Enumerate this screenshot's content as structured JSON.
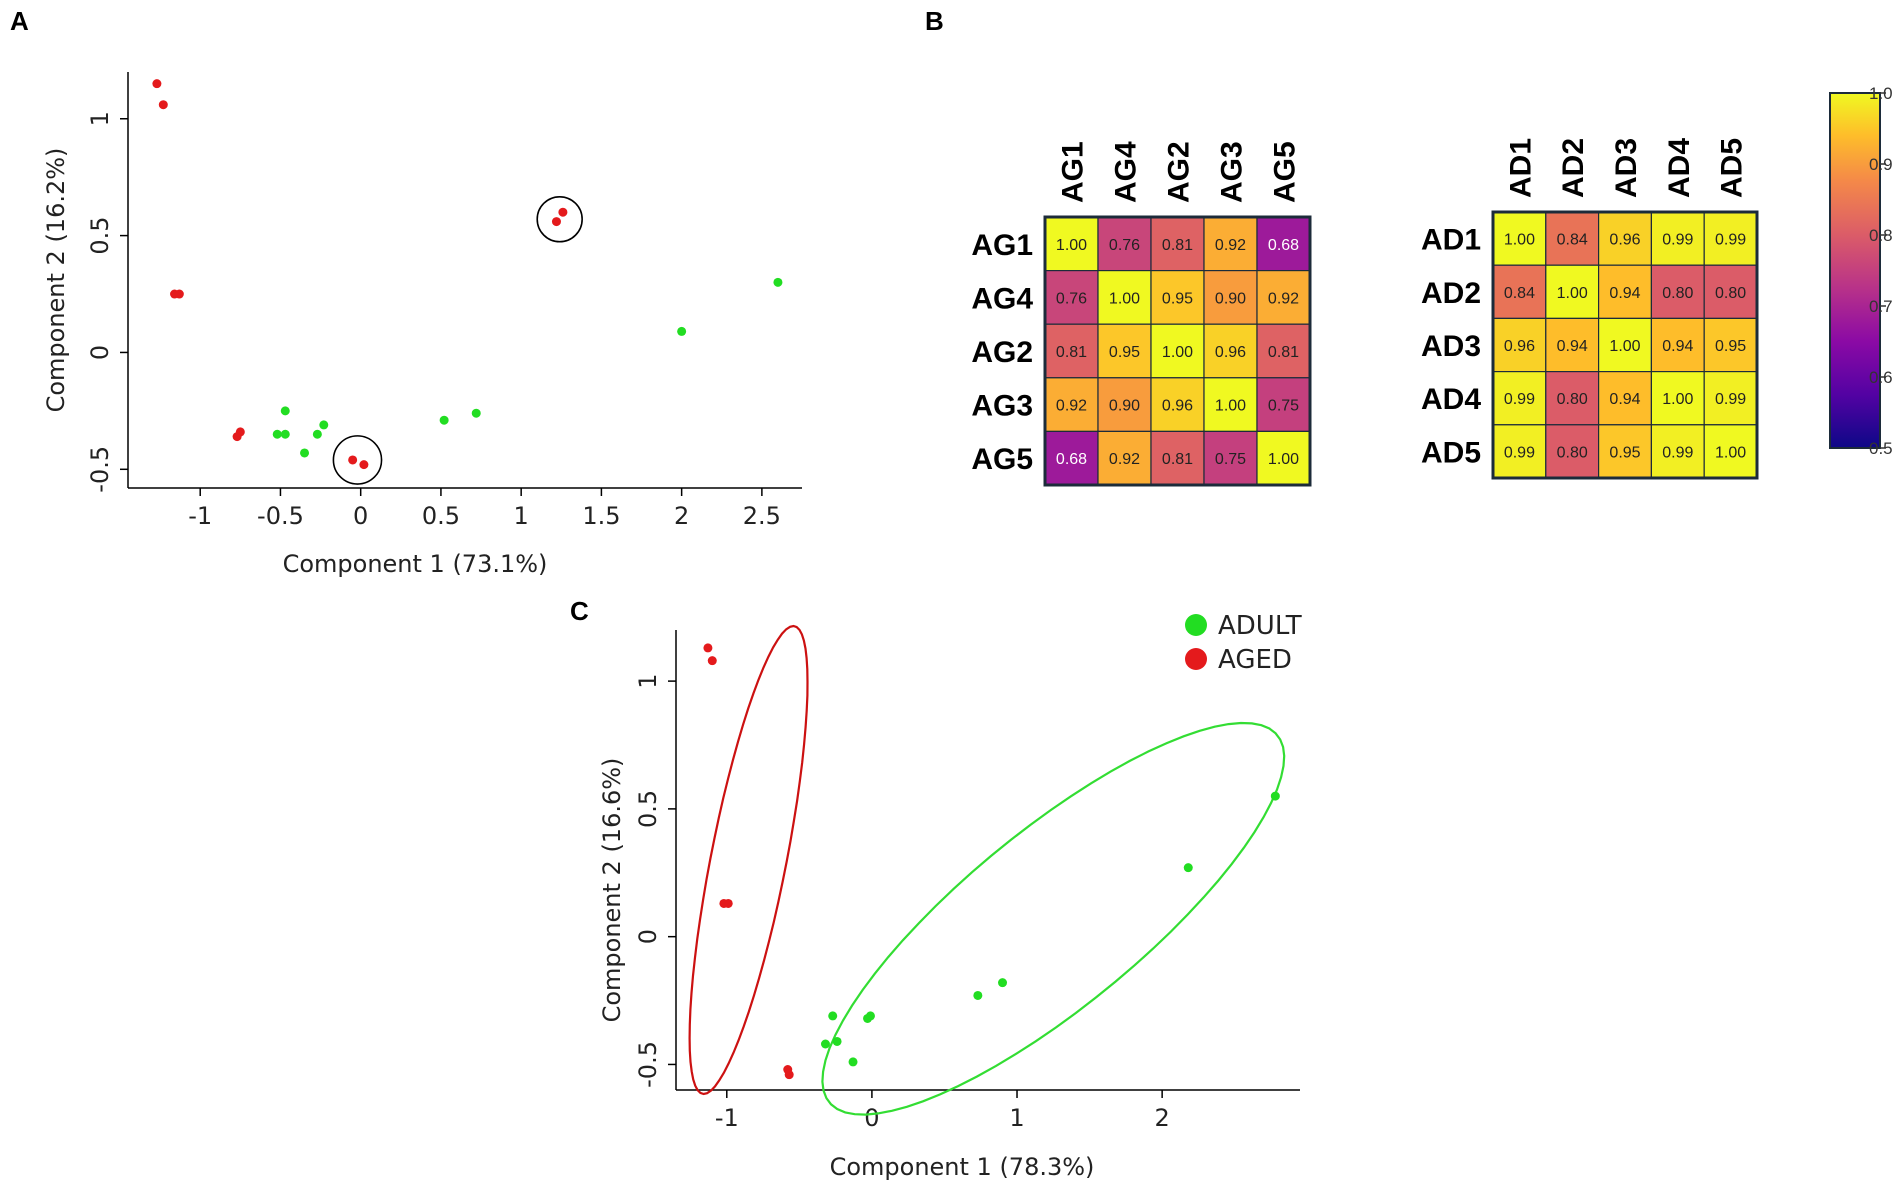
{
  "panels": {
    "a": "A",
    "b": "B",
    "c": "C"
  },
  "colors": {
    "adult": "#22dd22",
    "aged": "#e41a1c",
    "highlight_circle": "#000000",
    "ellipse_adult": "#33dd33",
    "ellipse_aged": "#cc1111",
    "grid_border": "#1c2b3a"
  },
  "legend": {
    "items": [
      {
        "label": "ADULT",
        "color": "#22dd22"
      },
      {
        "label": "AGED",
        "color": "#e41a1c"
      }
    ]
  },
  "chart_data": [
    {
      "id": "A",
      "type": "scatter",
      "title": "",
      "xlabel": "Component 1 (73.1%)",
      "ylabel": "Component 2 (16.2%)",
      "xlim": [
        -1.45,
        2.75
      ],
      "ylim": [
        -0.58,
        1.2
      ],
      "xticks": [
        -1,
        -0.5,
        0,
        0.5,
        1,
        1.5,
        2,
        2.5
      ],
      "xtick_labels": [
        "-1",
        "-0.5",
        "0",
        "0.5",
        "1",
        "1.5",
        "2",
        "2.5"
      ],
      "yticks": [
        -0.5,
        0,
        0.5,
        1
      ],
      "ytick_labels": [
        "-0.5",
        "0",
        "0.5",
        "1"
      ],
      "series": [
        {
          "name": "ADULT",
          "color": "#22dd22",
          "points": [
            [
              2.6,
              0.3
            ],
            [
              2.0,
              0.09
            ],
            [
              0.52,
              -0.29
            ],
            [
              0.72,
              -0.26
            ],
            [
              -0.47,
              -0.25
            ],
            [
              -0.52,
              -0.35
            ],
            [
              -0.47,
              -0.35
            ],
            [
              -0.35,
              -0.43
            ],
            [
              -0.27,
              -0.35
            ],
            [
              -0.23,
              -0.31
            ]
          ]
        },
        {
          "name": "AGED",
          "color": "#e41a1c",
          "points": [
            [
              -1.27,
              1.15
            ],
            [
              -1.23,
              1.06
            ],
            [
              -1.16,
              0.25
            ],
            [
              -1.13,
              0.25
            ],
            [
              -0.77,
              -0.36
            ],
            [
              -0.75,
              -0.34
            ],
            [
              -0.05,
              -0.46
            ],
            [
              0.02,
              -0.48
            ],
            [
              1.22,
              0.56
            ],
            [
              1.26,
              0.6
            ]
          ]
        }
      ],
      "highlight_circles": [
        {
          "center": [
            1.24,
            0.57
          ],
          "radius_x": 0.14
        },
        {
          "center": [
            -0.02,
            -0.46
          ],
          "radius_x": 0.15
        }
      ]
    },
    {
      "id": "B-aged",
      "type": "heatmap",
      "title": "",
      "row_labels": [
        "AG1",
        "AG4",
        "AG2",
        "AG3",
        "AG5"
      ],
      "col_labels": [
        "AG1",
        "AG4",
        "AG2",
        "AG3",
        "AG5"
      ],
      "values": [
        [
          1.0,
          0.76,
          0.81,
          0.92,
          0.68
        ],
        [
          0.76,
          1.0,
          0.95,
          0.9,
          0.92
        ],
        [
          0.81,
          0.95,
          1.0,
          0.96,
          0.81
        ],
        [
          0.92,
          0.9,
          0.96,
          1.0,
          0.75
        ],
        [
          0.68,
          0.92,
          0.81,
          0.75,
          1.0
        ]
      ],
      "value_labels": [
        [
          "1.00",
          "0.76",
          "0.81",
          "0.92",
          "0.68"
        ],
        [
          "0.76",
          "1.00",
          "0.95",
          "0.90",
          "0.92"
        ],
        [
          "0.81",
          "0.95",
          "1.00",
          "0.96",
          "0.81"
        ],
        [
          "0.92",
          "0.90",
          "0.96",
          "1.00",
          "0.75"
        ],
        [
          "0.68",
          "0.92",
          "0.81",
          "0.75",
          "1.00"
        ]
      ]
    },
    {
      "id": "B-adult",
      "type": "heatmap",
      "title": "",
      "row_labels": [
        "AD1",
        "AD2",
        "AD3",
        "AD4",
        "AD5"
      ],
      "col_labels": [
        "AD1",
        "AD2",
        "AD3",
        "AD4",
        "AD5"
      ],
      "values": [
        [
          1.0,
          0.84,
          0.96,
          0.99,
          0.99
        ],
        [
          0.84,
          1.0,
          0.94,
          0.8,
          0.8
        ],
        [
          0.96,
          0.94,
          1.0,
          0.94,
          0.95
        ],
        [
          0.99,
          0.8,
          0.94,
          1.0,
          0.99
        ],
        [
          0.99,
          0.8,
          0.95,
          0.99,
          1.0
        ]
      ],
      "value_labels": [
        [
          "1.00",
          "0.84",
          "0.96",
          "0.99",
          "0.99"
        ],
        [
          "0.84",
          "1.00",
          "0.94",
          "0.80",
          "0.80"
        ],
        [
          "0.96",
          "0.94",
          "1.00",
          "0.94",
          "0.95"
        ],
        [
          "0.99",
          "0.80",
          "0.94",
          "1.00",
          "0.99"
        ],
        [
          "0.99",
          "0.80",
          "0.95",
          "0.99",
          "1.00"
        ]
      ]
    },
    {
      "id": "B-colorbar",
      "type": "colorbar",
      "range": [
        0.5,
        1.0
      ],
      "ticks": [
        1.0,
        0.9,
        0.8,
        0.7,
        0.6,
        0.5
      ],
      "tick_labels": [
        "1.0",
        "0.9",
        "0.8",
        "0.7",
        "0.6",
        "0.5"
      ],
      "colormap": "plasma"
    },
    {
      "id": "C",
      "type": "scatter",
      "title": "",
      "xlabel": "Component 1 (78.3%)",
      "ylabel": "Component 2 (16.6%)",
      "xlim": [
        -1.35,
        2.95
      ],
      "ylim": [
        -0.6,
        1.2
      ],
      "xticks": [
        -1,
        0,
        1,
        2
      ],
      "xtick_labels": [
        "-1",
        "0",
        "1",
        "2"
      ],
      "yticks": [
        -0.5,
        0,
        0.5,
        1
      ],
      "ytick_labels": [
        "-0.5",
        "0",
        "0.5",
        "1"
      ],
      "series": [
        {
          "name": "ADULT",
          "color": "#22dd22",
          "points": [
            [
              2.78,
              0.55
            ],
            [
              2.18,
              0.27
            ],
            [
              0.9,
              -0.18
            ],
            [
              0.73,
              -0.23
            ],
            [
              -0.27,
              -0.31
            ],
            [
              -0.32,
              -0.42
            ],
            [
              -0.24,
              -0.41
            ],
            [
              -0.13,
              -0.49
            ],
            [
              -0.03,
              -0.32
            ],
            [
              -0.01,
              -0.31
            ]
          ]
        },
        {
          "name": "AGED",
          "color": "#e41a1c",
          "points": [
            [
              -1.13,
              1.13
            ],
            [
              -1.1,
              1.08
            ],
            [
              -1.02,
              0.13
            ],
            [
              -0.99,
              0.13
            ],
            [
              -0.58,
              -0.52
            ],
            [
              -0.57,
              -0.54
            ]
          ]
        }
      ],
      "ellipses": [
        {
          "group": "AGED",
          "center": [
            -0.85,
            0.3
          ],
          "semi_major": 0.97,
          "semi_minor": 0.25,
          "angle_deg": 70
        },
        {
          "group": "ADULT",
          "center": [
            1.25,
            0.07
          ],
          "semi_major": 1.72,
          "semi_minor": 0.4,
          "angle_deg": 23
        }
      ]
    }
  ]
}
